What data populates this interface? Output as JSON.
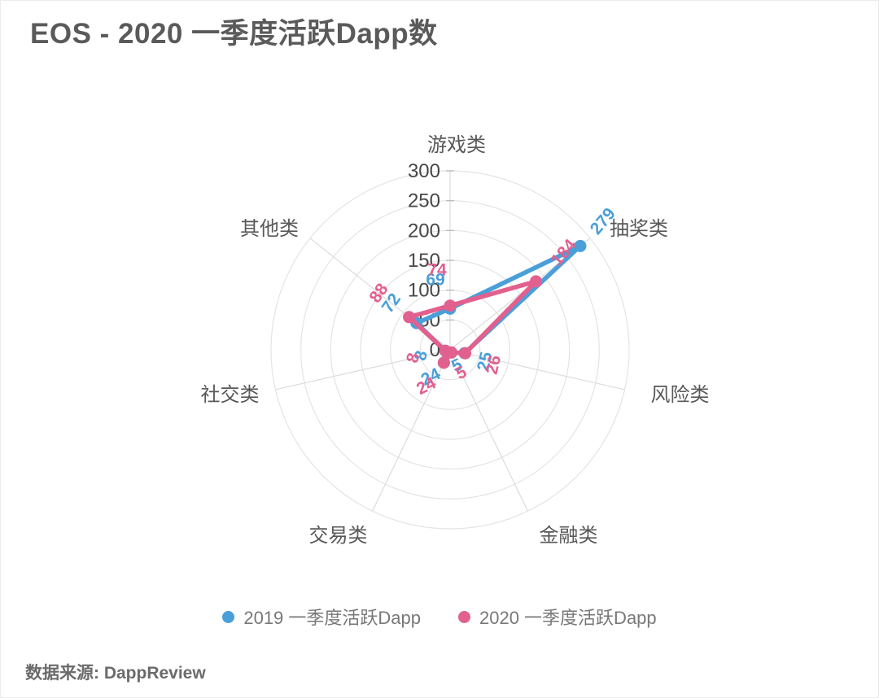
{
  "title": "EOS - 2020 一季度活跃Dapp数",
  "source": "数据来源: DappReview",
  "colors": {
    "series_2019": "#4a9fd9",
    "series_2020": "#e2608e",
    "grid_ring": "#e4e4e4",
    "axis_spoke": "#dcdcdc",
    "tick_mark": "#bcbcbc",
    "tick_label": "#474747",
    "category_label": "#585858",
    "title_text": "#5a5a5a",
    "legend_text": "#787878",
    "source_text": "#6b6b6b"
  },
  "legend": [
    {
      "label": "2019 一季度活跃Dapp",
      "color": "#4a9fd9"
    },
    {
      "label": "2020 一季度活跃Dapp",
      "color": "#e2608e"
    }
  ],
  "chart_data": {
    "type": "radar",
    "title": "EOS - 2020 一季度活跃Dapp数",
    "categories": [
      "游戏类",
      "抽奖类",
      "风险类",
      "金融类",
      "交易类",
      "社交类",
      "其他类"
    ],
    "series": [
      {
        "name": "2019 一季度活跃Dapp",
        "color": "#4a9fd9",
        "values": [
          69,
          279,
          25,
          5,
          24,
          8,
          72
        ]
      },
      {
        "name": "2020 一季度活跃Dapp",
        "color": "#e2608e",
        "values": [
          74,
          184,
          26,
          5,
          24,
          8,
          88
        ]
      }
    ],
    "radial_ticks": [
      0,
      50,
      100,
      150,
      200,
      250,
      300
    ],
    "max": 300,
    "grid": "circular",
    "legend_position": "bottom"
  }
}
